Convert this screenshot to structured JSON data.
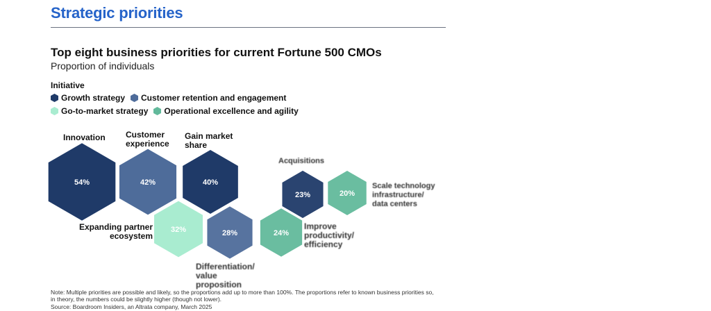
{
  "section_title": "Strategic priorities",
  "colors": {
    "growth": "#1f3a68",
    "retention": "#4e6c9a",
    "gtm": "#a9ecd0",
    "operational": "#62b99b"
  },
  "chart_data": {
    "type": "bar",
    "title": "Top eight business priorities for current Fortune 500 CMOs",
    "subtitle": "Proportion of individuals",
    "legend_title": "Initiative",
    "legend": [
      {
        "name": "Growth strategy",
        "color": "#1f3a68"
      },
      {
        "name": "Customer retention and engagement",
        "color": "#4e6c9a"
      },
      {
        "name": "Go-to-market strategy",
        "color": "#a9ecd0"
      },
      {
        "name": "Operational excellence and agility",
        "color": "#62b99b"
      }
    ],
    "categories": [
      "Innovation",
      "Customer experience",
      "Gain market share",
      "Expanding partner ecosystem",
      "Differentiation/ value proposition",
      "Improve productivity/ efficiency",
      "Acquisitions",
      "Scale technology infrastructure/ data centers"
    ],
    "values": [
      54,
      42,
      40,
      32,
      28,
      24,
      23,
      20
    ],
    "value_labels": [
      "54%",
      "42%",
      "40%",
      "32%",
      "28%",
      "24%",
      "23%",
      "20%"
    ],
    "initiatives": [
      "Growth strategy",
      "Customer retention and engagement",
      "Growth strategy",
      "Go-to-market strategy",
      "Customer retention and engagement",
      "Operational excellence and agility",
      "Growth strategy",
      "Operational excellence and agility"
    ],
    "note": "Note: Multiple priorities are possible and likely, so the proportions add up to more than 100%. The proportions refer to known business priorities so, in theory, the numbers could be slightly higher (though not lower).",
    "source": "Source: Boardroom Insiders, an Altrata company, March 2025"
  }
}
